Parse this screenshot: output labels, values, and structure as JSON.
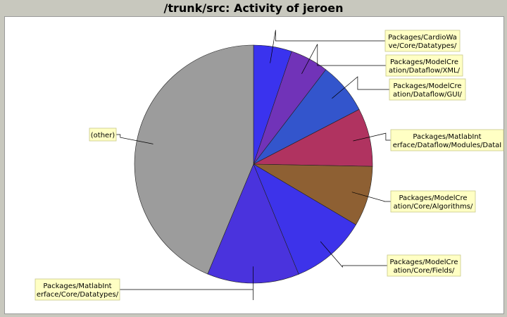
{
  "chart_data": {
    "type": "pie",
    "title": "/trunk/src: Activity of jeroen",
    "slices": [
      {
        "label": [
          "Packages/CardioWa",
          "ve/Core/Datatypes/"
        ],
        "value": 5.2,
        "color": "#3a33ee"
      },
      {
        "label": [
          "Packages/ModelCre",
          "ation/Dataflow/XML/"
        ],
        "value": 5.2,
        "color": "#7133b8"
      },
      {
        "label": [
          "Packages/ModelCre",
          "ation/Dataflow/GUI/"
        ],
        "value": 7.0,
        "color": "#3355cc"
      },
      {
        "label": [
          "Packages/MatlabInt",
          "erface/Dataflow/Modules/DataI"
        ],
        "value": 7.9,
        "color": "#b03360"
      },
      {
        "label": [
          "Packages/ModelCre",
          "ation/Core/Algorithms/"
        ],
        "value": 8.2,
        "color": "#8e6033"
      },
      {
        "label": [
          "Packages/ModelCre",
          "ation/Core/Fields/"
        ],
        "value": 10.3,
        "color": "#3d33ea"
      },
      {
        "label": [
          "Packages/MatlabInt",
          "erface/Core/Datatypes/"
        ],
        "value": 12.5,
        "color": "#4a33dd"
      },
      {
        "label": [
          "(other)"
        ],
        "value": 43.7,
        "color": "#9c9c9c"
      }
    ]
  }
}
